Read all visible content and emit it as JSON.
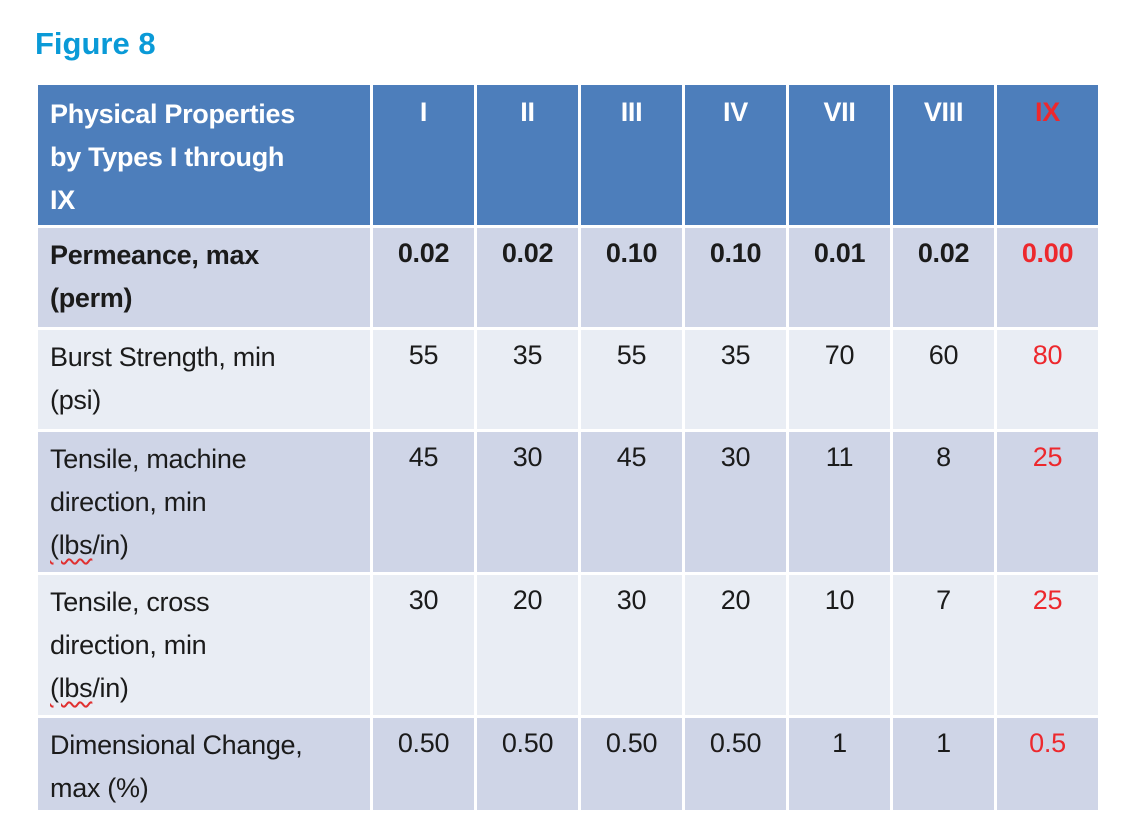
{
  "display": {
    "title": "Figure 8",
    "header_lines": [
      "Physical Properties",
      "by Types I through",
      "IX"
    ],
    "col_labels": [
      "I",
      "II",
      "III",
      "IV",
      "VII",
      "VIII",
      "IX"
    ],
    "row_labels": [
      {
        "lines": [
          "Permeance, max",
          "(perm)"
        ]
      },
      {
        "lines": [
          "Burst Strength, min",
          "(psi)"
        ]
      },
      {
        "lines": [
          "Tensile, machine",
          "direction, min"
        ],
        "squiggle": "(lbs",
        "rest": "/in)"
      },
      {
        "lines": [
          "Tensile, cross",
          "direction, min"
        ],
        "squiggle": "(lbs",
        "rest": "/in)"
      },
      {
        "lines": [
          "Dimensional Change,",
          "max (%)"
        ]
      }
    ]
  },
  "colors": {
    "title_cyan": "#0A9AD7",
    "header_blue": "#4D7EBB",
    "band_dark": "#CFD5E7",
    "band_light": "#E9EDF4",
    "highlight_red": "#ED282D",
    "header_text": "#FFFFFF",
    "body_text": "#1B1B1B"
  },
  "chart_data": {
    "type": "table",
    "title": "Figure 8",
    "columns": [
      "Physical Properties by Types I through IX",
      "I",
      "II",
      "III",
      "IV",
      "VII",
      "VIII",
      "IX"
    ],
    "rows": [
      {
        "label": "Permeance, max (perm)",
        "values": [
          "0.02",
          "0.02",
          "0.10",
          "0.10",
          "0.01",
          "0.02",
          "0.00"
        ]
      },
      {
        "label": "Burst Strength, min (psi)",
        "values": [
          "55",
          "35",
          "55",
          "35",
          "70",
          "60",
          "80"
        ]
      },
      {
        "label": "Tensile, machine direction, min (lbs/in)",
        "values": [
          "45",
          "30",
          "45",
          "30",
          "11",
          "8",
          "25"
        ]
      },
      {
        "label": "Tensile, cross direction, min (lbs/in)",
        "values": [
          "30",
          "20",
          "30",
          "20",
          "10",
          "7",
          "25"
        ]
      },
      {
        "label": "Dimensional Change, max (%)",
        "values": [
          "0.50",
          "0.50",
          "0.50",
          "0.50",
          "1",
          "1",
          "0.5"
        ]
      }
    ],
    "highlight_column": "IX",
    "highlight_color": "#ED282D",
    "layout_hints": {
      "banded_rows": true,
      "bold_rows": [
        "header",
        "Permeance, max (perm)"
      ],
      "grid": "white 3px separators"
    }
  }
}
